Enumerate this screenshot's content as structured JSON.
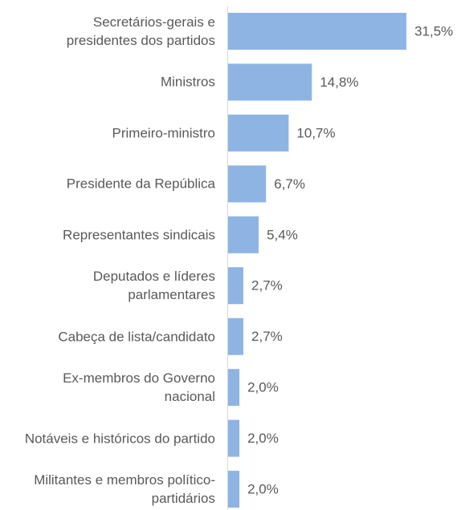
{
  "chart_data": {
    "type": "bar",
    "orientation": "horizontal",
    "categories": [
      "Secretários-gerais e presidentes dos partidos",
      "Ministros",
      "Primeiro-ministro",
      "Presidente da República",
      "Representantes sindicais",
      "Deputados e líderes parlamentares",
      "Cabeça de lista/candidato",
      "Ex-membros do Governo nacional",
      "Notáveis e históricos do partido",
      "Militantes e membros político-partidários"
    ],
    "values": [
      31.5,
      14.8,
      10.7,
      6.7,
      5.4,
      2.7,
      2.7,
      2.0,
      2.0,
      2.0
    ],
    "value_labels": [
      "31,5%",
      "14,8%",
      "10,7%",
      "6,7%",
      "5,4%",
      "2,7%",
      "2,7%",
      "2,0%",
      "2,0%",
      "2,0%"
    ],
    "color": "#8eb4e3"
  }
}
